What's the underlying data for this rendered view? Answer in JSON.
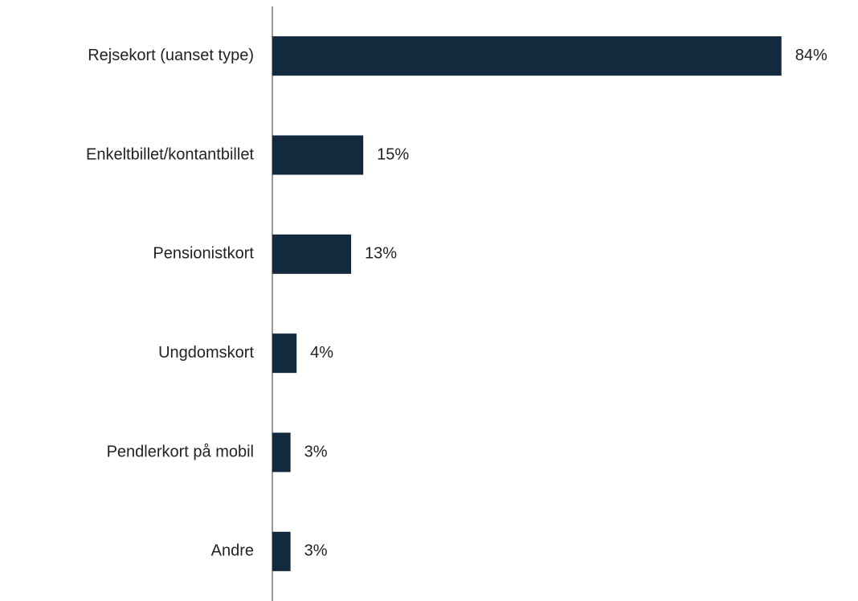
{
  "chart_data": {
    "type": "bar",
    "orientation": "horizontal",
    "categories": [
      "Rejsekort (uanset type)",
      "Enkeltbillet/kontantbillet",
      "Pensionistkort",
      "Ungdomskort",
      "Pendlerkort på mobil",
      "Andre"
    ],
    "values": [
      84,
      15,
      13,
      4,
      3,
      3
    ],
    "value_labels": [
      "84%",
      "15%",
      "13%",
      "4%",
      "3%",
      "3%"
    ],
    "color": "#132a3e",
    "xlim": [
      0,
      90
    ]
  }
}
